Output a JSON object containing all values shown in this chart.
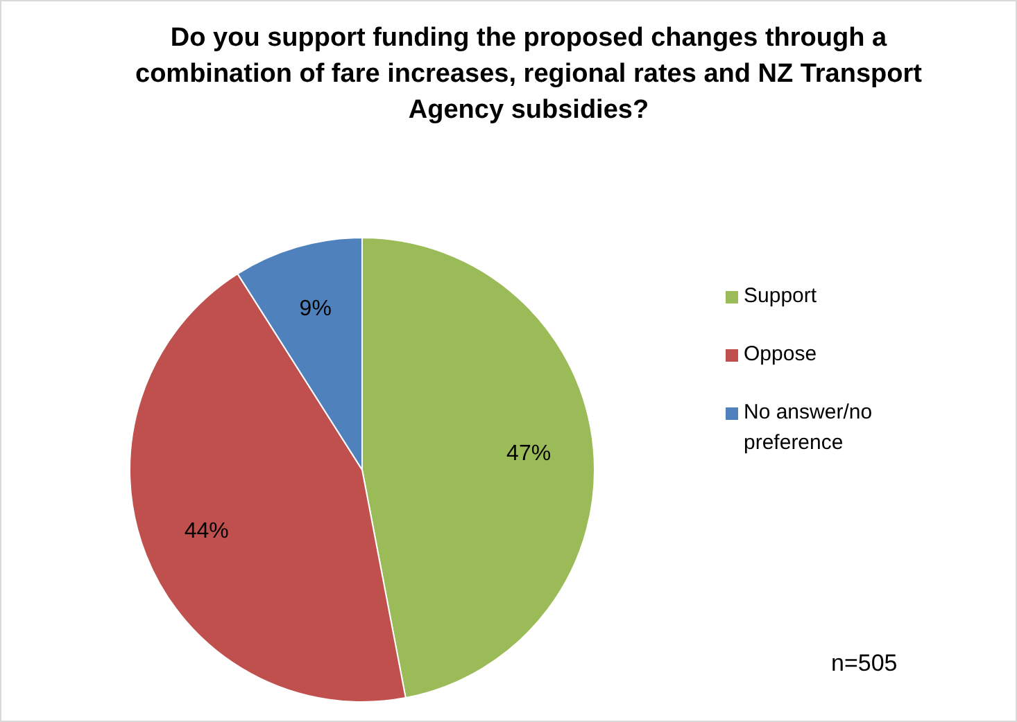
{
  "chart_data": {
    "type": "pie",
    "title": "Do you support funding the proposed changes through a  combination of fare increases, regional rates and NZ Transport Agency subsidies?",
    "categories": [
      "Support",
      "Oppose",
      "No answer/no preference"
    ],
    "values": [
      47,
      44,
      9
    ],
    "colors": [
      "#9bbb59",
      "#c0504d",
      "#4f81bd"
    ],
    "value_labels": [
      "47%",
      "44%",
      "9%"
    ],
    "legend": "right",
    "annotations": [
      "n=505"
    ]
  }
}
